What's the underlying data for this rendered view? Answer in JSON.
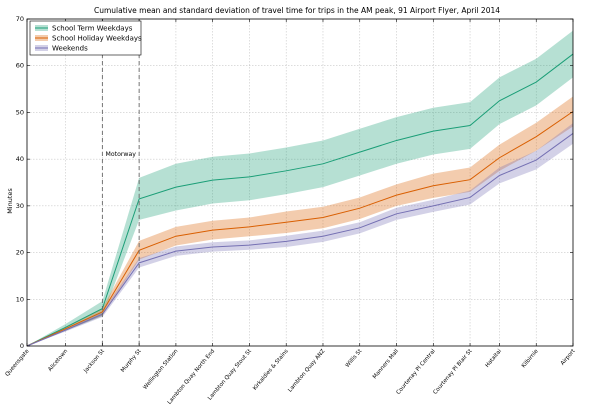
{
  "chart_data": {
    "type": "line",
    "title": "Cumulative mean and standard deviation of travel time for trips in the AM peak, 91 Airport Flyer, April 2014",
    "xlabel": "",
    "ylabel": "Minutes",
    "ylim": [
      0,
      70
    ],
    "yticks": [
      0,
      10,
      20,
      30,
      40,
      50,
      60,
      70
    ],
    "grid": true,
    "legend_position": "top-left",
    "categories": [
      "Queensgate",
      "Alicetown",
      "Jackson St",
      "Murphy St",
      "Wellington Station",
      "Lambton Quay North End",
      "Lambton Quay Stout St",
      "Kirkaldies & Stains",
      "Lambton Quay ANZ",
      "Willis St",
      "Manners Mall",
      "Courtenay Pl Central",
      "Courtenay Pl Blair St",
      "Hataitai",
      "Kilbirnie",
      "Airport"
    ],
    "x_positions": [
      0,
      1.05,
      2.05,
      3.05,
      4.05,
      5.05,
      6.05,
      7.05,
      8.05,
      9.05,
      10.05,
      11.05,
      12.05,
      12.85,
      13.85,
      14.85
    ],
    "series": [
      {
        "name": "School Term Weekdays",
        "color": "#1b9e77",
        "values": [
          0,
          4.0,
          8.0,
          31.5,
          34.0,
          35.5,
          36.2,
          37.5,
          39.0,
          41.5,
          44.0,
          46.0,
          47.2,
          52.5,
          56.5,
          62.5
        ],
        "std": [
          0,
          0.7,
          1.6,
          4.5,
          5.0,
          5.0,
          5.0,
          5.0,
          5.0,
          5.0,
          5.0,
          5.0,
          5.0,
          5.0,
          5.0,
          5.0
        ]
      },
      {
        "name": "School Holiday Weekdays",
        "color": "#d95f02",
        "values": [
          0,
          3.7,
          7.3,
          20.5,
          23.5,
          24.8,
          25.5,
          26.5,
          27.5,
          29.5,
          32.3,
          34.3,
          35.6,
          40.3,
          44.8,
          50.2
        ],
        "std": [
          0,
          0.4,
          0.8,
          2.0,
          2.0,
          2.0,
          2.0,
          2.3,
          2.3,
          2.3,
          2.3,
          2.6,
          2.6,
          2.8,
          3.0,
          3.2
        ]
      },
      {
        "name": "Weekends",
        "color": "#7570b3",
        "values": [
          0,
          3.4,
          6.8,
          17.8,
          20.3,
          21.2,
          21.6,
          22.4,
          23.5,
          25.3,
          28.3,
          30.0,
          31.8,
          36.5,
          39.8,
          45.5
        ],
        "std": [
          0,
          0.3,
          0.6,
          1.0,
          1.0,
          1.0,
          1.0,
          1.2,
          1.2,
          1.2,
          1.3,
          1.3,
          1.5,
          1.7,
          2.0,
          2.2
        ]
      }
    ],
    "annotations": [
      {
        "text": "Motorway",
        "category_range": [
          "Jackson St",
          "Murphy St"
        ],
        "y": 40
      }
    ]
  }
}
